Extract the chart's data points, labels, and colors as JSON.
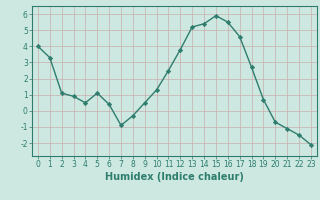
{
  "x": [
    0,
    1,
    2,
    3,
    4,
    5,
    6,
    7,
    8,
    9,
    10,
    11,
    12,
    13,
    14,
    15,
    16,
    17,
    18,
    19,
    20,
    21,
    22,
    23
  ],
  "y": [
    4.0,
    3.3,
    1.1,
    0.9,
    0.5,
    1.1,
    0.4,
    -0.9,
    -0.3,
    0.5,
    1.3,
    2.5,
    3.8,
    5.2,
    5.4,
    5.9,
    5.5,
    4.6,
    2.7,
    0.7,
    -0.7,
    -1.1,
    -1.5,
    -2.1
  ],
  "line_color": "#2e7d6e",
  "marker": "D",
  "markersize": 2.2,
  "linewidth": 1.0,
  "background_color": "#cde8e0",
  "grid_color": "#c0d8d0",
  "xlabel": "Humidex (Indice chaleur)",
  "xlabel_fontsize": 7,
  "xlabel_weight": "bold",
  "ylim": [
    -2.8,
    6.5
  ],
  "xlim": [
    -0.5,
    23.5
  ],
  "yticks": [
    -2,
    -1,
    0,
    1,
    2,
    3,
    4,
    5,
    6
  ],
  "xticks": [
    0,
    1,
    2,
    3,
    4,
    5,
    6,
    7,
    8,
    9,
    10,
    11,
    12,
    13,
    14,
    15,
    16,
    17,
    18,
    19,
    20,
    21,
    22,
    23
  ],
  "tick_fontsize": 5.5,
  "tick_color": "#2e7d6e",
  "spine_color": "#2e7d6e",
  "grid_color_red": "#d4b0b0",
  "grid_color_teal": "#a8ccc4"
}
